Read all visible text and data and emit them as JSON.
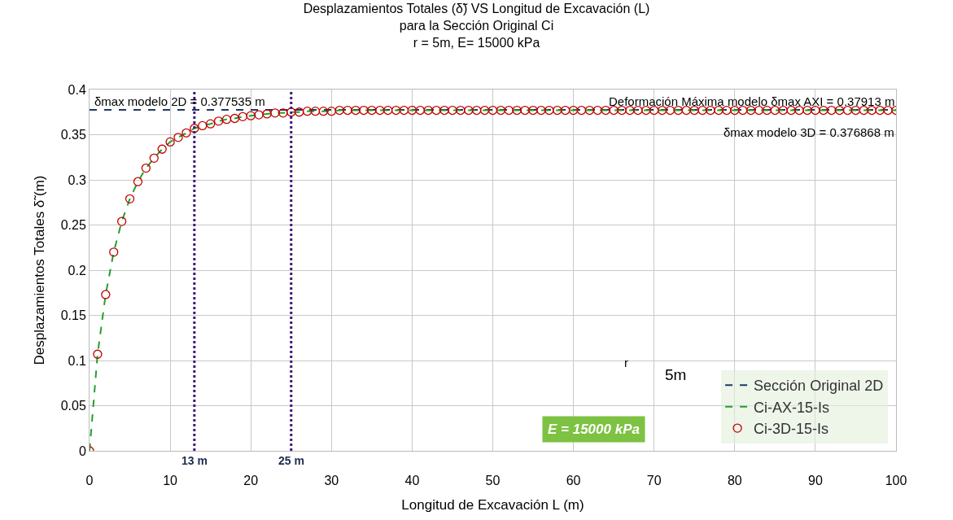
{
  "chart_data": {
    "type": "line",
    "title": "Desplazamientos Totales (δ̃) VS Longitud de Excavación (L)",
    "subtitle": "para la Sección Original Ci\nr = 5m, E= 15000 kPa",
    "xlabel": "Longitud de Excavación L (m)",
    "ylabel": "Desplazamientos Totales δ̃ (m)",
    "x": [
      0,
      1,
      2,
      3,
      4,
      5,
      6,
      7,
      8,
      9,
      10,
      11,
      12,
      13,
      14,
      15,
      16,
      17,
      18,
      19,
      20,
      21,
      22,
      23,
      24,
      25,
      26,
      27,
      28,
      29,
      30,
      31,
      32,
      33,
      34,
      35,
      36,
      37,
      38,
      39,
      40,
      41,
      42,
      43,
      44,
      45,
      46,
      47,
      48,
      49,
      50,
      51,
      52,
      53,
      54,
      55,
      56,
      57,
      58,
      59,
      60,
      61,
      62,
      63,
      64,
      65,
      66,
      67,
      68,
      69,
      70,
      71,
      72,
      73,
      74,
      75,
      76,
      77,
      78,
      79,
      80,
      81,
      82,
      83,
      84,
      85,
      86,
      87,
      88,
      89,
      90,
      91,
      92,
      93,
      94,
      95,
      96,
      97,
      98,
      99,
      100
    ],
    "series": [
      {
        "name": "Sección Original 2D",
        "type": "line",
        "color": "#1f3864",
        "line_style": "dashed",
        "marker": "none",
        "x": [
          0,
          100
        ],
        "values": [
          0.377535,
          0.377535
        ]
      },
      {
        "name": "Ci-AX-15-Is",
        "color": "#22a02a",
        "line_style": "dashed",
        "marker": "none",
        "values": [
          0,
          0.107,
          0.173,
          0.22,
          0.254,
          0.279,
          0.298,
          0.313,
          0.324,
          0.334,
          0.342,
          0.347,
          0.352,
          0.357,
          0.36,
          0.362,
          0.365,
          0.367,
          0.368,
          0.37,
          0.371,
          0.372,
          0.373,
          0.374,
          0.374,
          0.375,
          0.375,
          0.376,
          0.376,
          0.376,
          0.376,
          0.377,
          0.377,
          0.377,
          0.377,
          0.377,
          0.377,
          0.377,
          0.377,
          0.377,
          0.377,
          0.377,
          0.377,
          0.377,
          0.377,
          0.377,
          0.377,
          0.377,
          0.377,
          0.377,
          0.377,
          0.377,
          0.377,
          0.377,
          0.377,
          0.377,
          0.377,
          0.377,
          0.377,
          0.377,
          0.377,
          0.377,
          0.377,
          0.377,
          0.377,
          0.377,
          0.377,
          0.377,
          0.377,
          0.377,
          0.377,
          0.377,
          0.377,
          0.377,
          0.377,
          0.377,
          0.377,
          0.377,
          0.377,
          0.377,
          0.377,
          0.377,
          0.377,
          0.377,
          0.377,
          0.377,
          0.377,
          0.377,
          0.377,
          0.377,
          0.377,
          0.377,
          0.377,
          0.377,
          0.377,
          0.377,
          0.377,
          0.377,
          0.377,
          0.377,
          0.377
        ]
      },
      {
        "name": "Ci-3D-15-Is",
        "type": "scatter",
        "color": "#c00000",
        "marker": "circle",
        "values": [
          0,
          0.107,
          0.173,
          0.22,
          0.254,
          0.279,
          0.298,
          0.313,
          0.324,
          0.334,
          0.342,
          0.347,
          0.352,
          0.357,
          0.36,
          0.362,
          0.365,
          0.367,
          0.368,
          0.37,
          0.371,
          0.372,
          0.373,
          0.374,
          0.374,
          0.375,
          0.375,
          0.376,
          0.376,
          0.376,
          0.376,
          0.377,
          0.377,
          0.377,
          0.377,
          0.377,
          0.377,
          0.377,
          0.377,
          0.377,
          0.377,
          0.377,
          0.377,
          0.377,
          0.377,
          0.377,
          0.377,
          0.377,
          0.377,
          0.377,
          0.377,
          0.377,
          0.377,
          0.377,
          0.377,
          0.377,
          0.377,
          0.377,
          0.377,
          0.377,
          0.377,
          0.377,
          0.377,
          0.377,
          0.377,
          0.377,
          0.377,
          0.377,
          0.377,
          0.377,
          0.377,
          0.377,
          0.377,
          0.377,
          0.377,
          0.377,
          0.377,
          0.377,
          0.377,
          0.377,
          0.377,
          0.377,
          0.377,
          0.377,
          0.377,
          0.377,
          0.377,
          0.377,
          0.377,
          0.377,
          0.377,
          0.377,
          0.377,
          0.377,
          0.377,
          0.377,
          0.377,
          0.377,
          0.377,
          0.377,
          0.377
        ]
      }
    ],
    "xlim": [
      0,
      100
    ],
    "xticks": [
      0,
      10,
      20,
      30,
      40,
      50,
      60,
      70,
      80,
      90,
      100
    ],
    "ylim": [
      0,
      0.4
    ],
    "yticks": [
      0,
      0.05,
      0.1,
      0.15,
      0.2,
      0.25,
      0.3,
      0.35,
      0.4
    ],
    "ref_lines": [
      {
        "axis": "x",
        "value": 13,
        "label": "13 m",
        "color": "#3c1a7a",
        "line_style": "dotted"
      },
      {
        "axis": "x",
        "value": 25,
        "label": "25 m",
        "color": "#3c1a7a",
        "line_style": "dotted"
      }
    ],
    "annotations": [
      {
        "text": "δmax modelo 2D = 0.377535 m",
        "x": 0,
        "y": 0.377535
      },
      "Deformación Máxima modelo δmax AXI = 0.37913 m",
      "δmax modelo 3D = 0.376868 m",
      "E = 15000 kPa",
      "r",
      "5m"
    ],
    "grid": true,
    "legend": "bottom right"
  }
}
